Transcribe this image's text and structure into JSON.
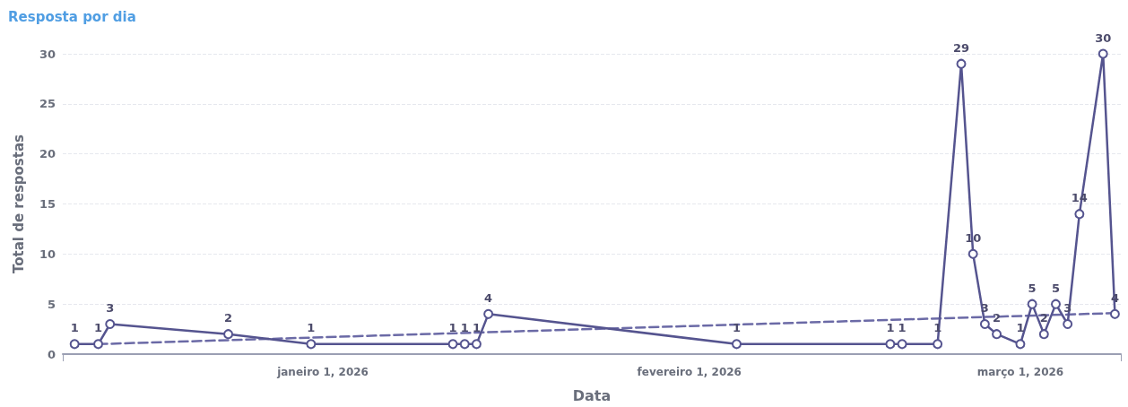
{
  "chart_data": {
    "type": "line",
    "title": "Resposta por dia",
    "xlabel": "Data",
    "ylabel": "Total de respostas",
    "x": [
      "2025-12-11",
      "2025-12-13",
      "2025-12-14",
      "2025-12-24",
      "2025-12-31",
      "2026-01-12",
      "2026-01-13",
      "2026-01-14",
      "2026-01-15",
      "2026-02-05",
      "2026-02-18",
      "2026-02-19",
      "2026-02-22",
      "2026-02-24",
      "2026-02-25",
      "2026-02-26",
      "2026-02-27",
      "2026-03-01",
      "2026-03-02",
      "2026-03-03",
      "2026-03-04",
      "2026-03-05",
      "2026-03-06",
      "2026-03-08",
      "2026-03-09"
    ],
    "series": [
      {
        "color": "#55548f",
        "marker": "circle",
        "line_style": "solid",
        "values": [
          1,
          1,
          3,
          2,
          1,
          1,
          1,
          1,
          4,
          1,
          1,
          1,
          1,
          29,
          10,
          3,
          2,
          1,
          5,
          2,
          5,
          3,
          14,
          30,
          4
        ],
        "value_labels": [
          "1",
          "1",
          "3",
          "2",
          "1",
          "1",
          "1",
          "1",
          "4",
          "1",
          "1",
          "1",
          "1",
          "29",
          "10",
          "3",
          "2",
          "1",
          "5",
          "2",
          "5",
          "3",
          "14",
          "30",
          "4"
        ]
      },
      {
        "color": "#6b6aa6",
        "marker": "none",
        "line_style": "dashed",
        "x": [
          "2025-12-13",
          "2026-03-09"
        ],
        "values": [
          1.0,
          4.1
        ]
      }
    ],
    "xlim": [
      "2025-12-10",
      "2026-03-09T12:00"
    ],
    "xticks": [
      {
        "value": "2026-01-01",
        "label": "janeiro 1, 2026"
      },
      {
        "value": "2026-02-01",
        "label": "fevereiro 1, 2026"
      },
      {
        "value": "2026-03-01",
        "label": "março 1, 2026"
      }
    ],
    "ylim": [
      0,
      30
    ],
    "yticks": [
      0,
      5,
      10,
      15,
      20,
      25,
      30
    ],
    "grid": "y"
  }
}
